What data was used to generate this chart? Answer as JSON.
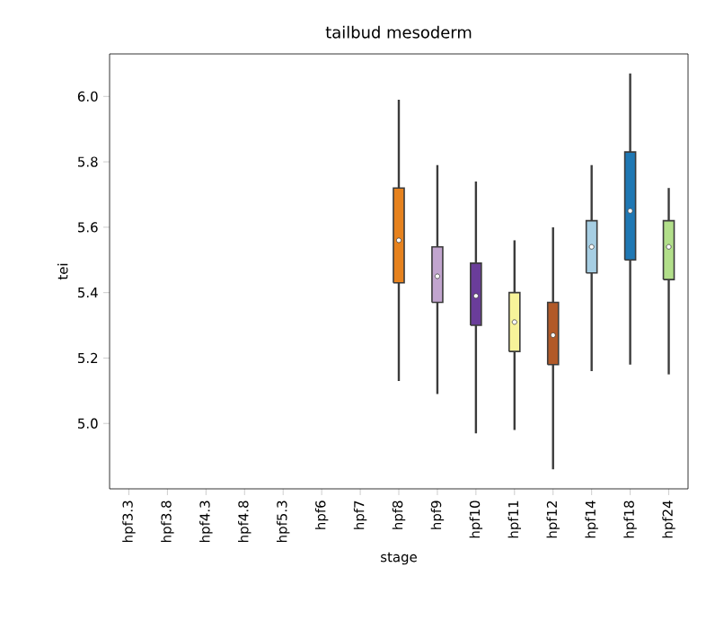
{
  "chart_data": {
    "type": "box",
    "title": "tailbud mesoderm",
    "xlabel": "stage",
    "ylabel": "tei",
    "categories": [
      "hpf3.3",
      "hpf3.8",
      "hpf4.3",
      "hpf4.8",
      "hpf5.3",
      "hpf6",
      "hpf7",
      "hpf8",
      "hpf9",
      "hpf10",
      "hpf11",
      "hpf12",
      "hpf14",
      "hpf18",
      "hpf24"
    ],
    "colors": [
      "#1f78b4",
      "#1f78b4",
      "#1f78b4",
      "#1f78b4",
      "#1f78b4",
      "#1f78b4",
      "#1f78b4",
      "#e6821e",
      "#c2a5cf",
      "#6a3d9a",
      "#f7f39a",
      "#b15928",
      "#a6cee3",
      "#1f78b4",
      "#b2df8a"
    ],
    "boxes": [
      null,
      null,
      null,
      null,
      null,
      null,
      null,
      {
        "low": 5.13,
        "q1": 5.43,
        "median": 5.56,
        "q3": 5.72,
        "high": 5.99
      },
      {
        "low": 5.09,
        "q1": 5.37,
        "median": 5.45,
        "q3": 5.54,
        "high": 5.79
      },
      {
        "low": 4.97,
        "q1": 5.3,
        "median": 5.39,
        "q3": 5.49,
        "high": 5.74
      },
      {
        "low": 4.98,
        "q1": 5.22,
        "median": 5.31,
        "q3": 5.4,
        "high": 5.56
      },
      {
        "low": 4.86,
        "q1": 5.18,
        "median": 5.27,
        "q3": 5.37,
        "high": 5.6
      },
      {
        "low": 5.16,
        "q1": 5.46,
        "median": 5.54,
        "q3": 5.62,
        "high": 5.79
      },
      {
        "low": 5.18,
        "q1": 5.5,
        "median": 5.65,
        "q3": 5.83,
        "high": 6.07
      },
      {
        "low": 5.15,
        "q1": 5.44,
        "median": 5.54,
        "q3": 5.62,
        "high": 5.72
      }
    ],
    "ylim": [
      4.8,
      6.13
    ],
    "yticks": [
      {
        "value": 5.0,
        "label": "5.0"
      },
      5.2,
      5.4,
      5.6,
      5.8,
      {
        "value": 6.0,
        "label": "6.0"
      }
    ],
    "grid": false
  }
}
